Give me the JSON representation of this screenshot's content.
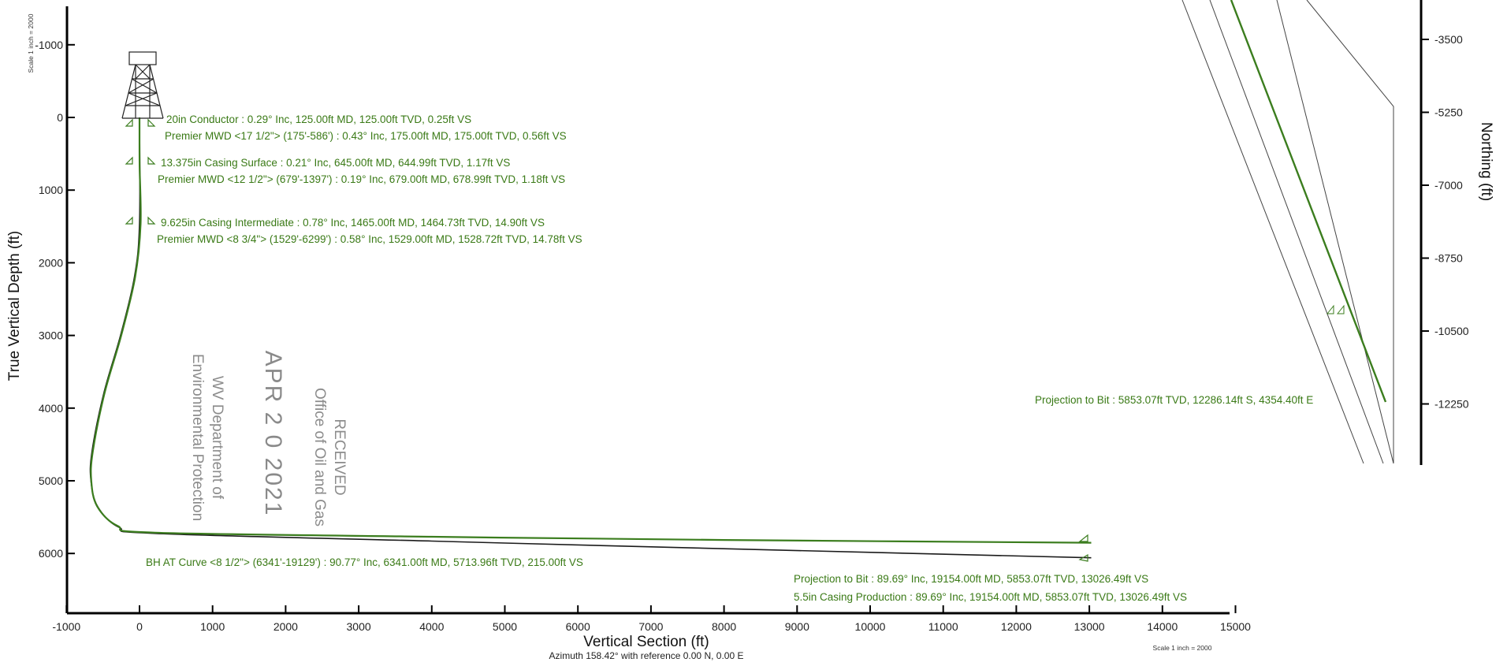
{
  "section": {
    "x_axis": {
      "label": "Vertical Section (ft)",
      "range": [
        -1000,
        15000
      ],
      "ticks": [
        -1000,
        0,
        1000,
        2000,
        3000,
        4000,
        5000,
        6000,
        7000,
        8000,
        9000,
        10000,
        11000,
        12000,
        13000,
        14000,
        15000
      ]
    },
    "y_axis": {
      "label": "True Vertical Depth (ft)",
      "range": [
        -1000,
        6700
      ],
      "inverted": true,
      "ticks": [
        -1000,
        0,
        1000,
        2000,
        3000,
        4000,
        5000,
        6000
      ]
    },
    "azimuth_note": "Azimuth 158.42° with reference 0.00 N, 0.00 E",
    "scale_note_top": "Scale 1 inch = 2000",
    "scale_note_bottom": "Scale 1 inch = 2000",
    "annotations": [
      "20in Conductor : 0.29° Inc, 125.00ft MD, 125.00ft TVD, 0.25ft VS",
      "Premier MWD <17 1/2\"> (175'-586') : 0.43° Inc, 175.00ft MD, 175.00ft TVD, 0.56ft VS",
      "13.375in Casing Surface : 0.21° Inc, 645.00ft MD, 644.99ft TVD, 1.17ft VS",
      "Premier MWD <12 1/2\"> (679'-1397') : 0.19° Inc, 679.00ft MD, 678.99ft TVD, 1.18ft VS",
      "9.625in Casing Intermediate : 0.78° Inc, 1465.00ft MD, 1464.73ft TVD, 14.90ft VS",
      "Premier MWD <8 3/4\"> (1529'-6299') : 0.58° Inc, 1529.00ft MD, 1528.72ft TVD, 14.78ft VS",
      "BH AT Curve <8 1/2\"> (6341'-19129') : 90.77° Inc, 6341.00ft MD, 5713.96ft TVD, 215.00ft VS",
      "Projection to Bit : 89.69° Inc, 19154.00ft MD, 5853.07ft TVD, 13026.49ft VS",
      "5.5in Casing Production : 89.69° Inc, 19154.00ft MD, 5853.07ft TVD, 13026.49ft VS"
    ],
    "well_path": [
      {
        "vs": 0,
        "tvd": 0
      },
      {
        "vs": 1,
        "tvd": 645
      },
      {
        "vs": 15,
        "tvd": 1465
      },
      {
        "vs": -60,
        "tvd": 2200
      },
      {
        "vs": -250,
        "tvd": 3000
      },
      {
        "vs": -480,
        "tvd": 3800
      },
      {
        "vs": -640,
        "tvd": 4600
      },
      {
        "vs": -660,
        "tvd": 5000
      },
      {
        "vs": -580,
        "tvd": 5350
      },
      {
        "vs": -300,
        "tvd": 5620
      },
      {
        "vs": 215,
        "tvd": 5714
      },
      {
        "vs": 4000,
        "tvd": 5770
      },
      {
        "vs": 8000,
        "tvd": 5815
      },
      {
        "vs": 13026,
        "tvd": 5853
      }
    ],
    "plan_path": [
      {
        "vs": 0,
        "tvd": 0
      },
      {
        "vs": 0,
        "tvd": 1465
      },
      {
        "vs": -70,
        "tvd": 2200
      },
      {
        "vs": -260,
        "tvd": 3000
      },
      {
        "vs": -490,
        "tvd": 3800
      },
      {
        "vs": -650,
        "tvd": 4600
      },
      {
        "vs": -665,
        "tvd": 5000
      },
      {
        "vs": -570,
        "tvd": 5360
      },
      {
        "vs": -280,
        "tvd": 5640
      },
      {
        "vs": 215,
        "tvd": 5725
      },
      {
        "vs": 4000,
        "tvd": 5830
      },
      {
        "vs": 8000,
        "tvd": 5935
      },
      {
        "vs": 13026,
        "tvd": 6060
      }
    ]
  },
  "plan_view": {
    "y_axis": {
      "label": "Northing (ft)",
      "ticks": [
        -3500,
        -5250,
        -7000,
        -8750,
        -10500,
        -12250
      ]
    },
    "annotation": "Projection to Bit : 5853.07ft TVD, 12286.14ft S, 4354.40ft E"
  },
  "stamp": {
    "line1": "RECEIVED",
    "line2": "Office of Oil and Gas",
    "date": "APR 2 0 2021",
    "line3": "WV Department of",
    "line4": "Environmental Protection"
  },
  "colors": {
    "well_path": "#3b7d1e",
    "plan_path": "#1b1b1b",
    "annotation": "#3a7a16",
    "stamp": "#8c8c8c"
  },
  "icons": [
    "drilling-rig-icon",
    "casing-shoe-icon"
  ]
}
